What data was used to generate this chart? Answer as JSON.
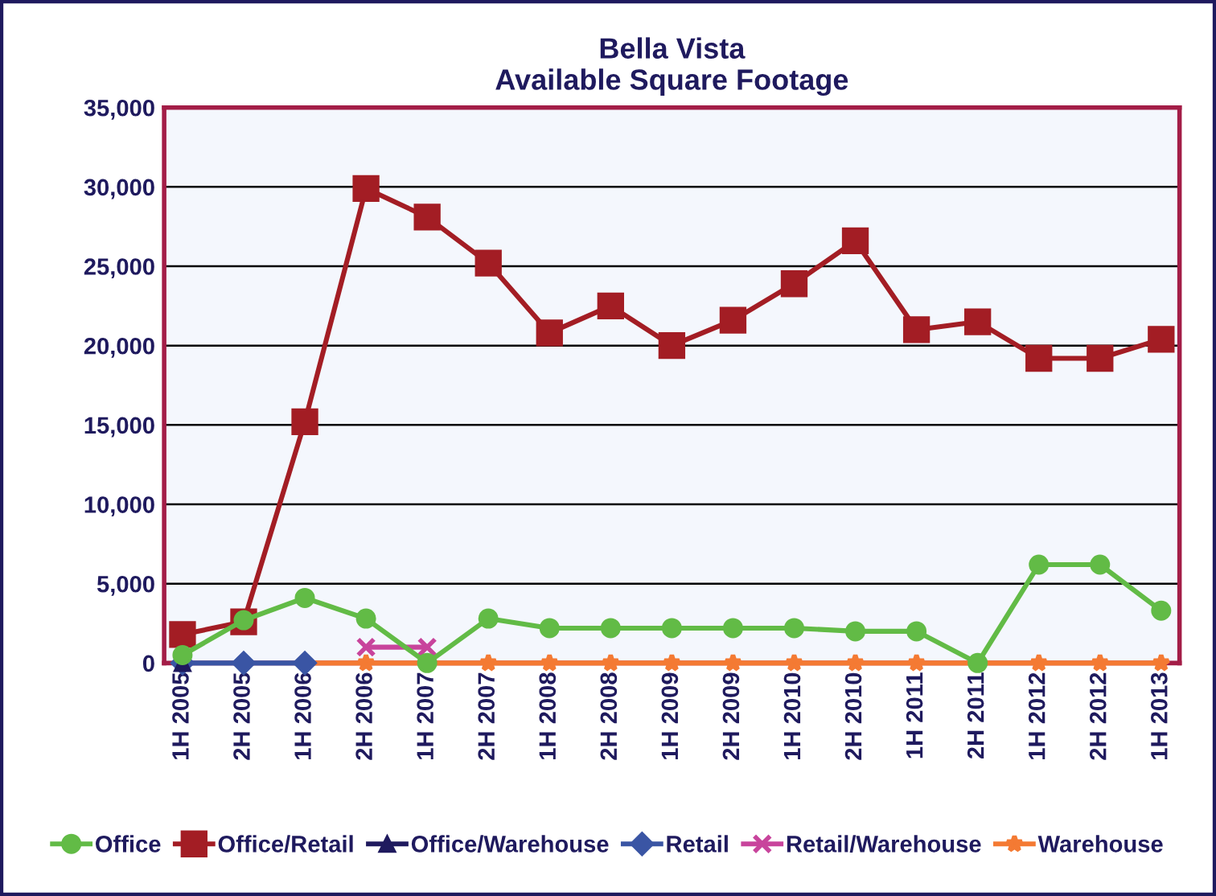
{
  "chart_data": {
    "type": "line",
    "title": "Bella Vista\nAvailable Square Footage",
    "categories": [
      "1H 2005",
      "2H 2005",
      "1H 2006",
      "2H 2006",
      "1H 2007",
      "2H 2007",
      "1H 2008",
      "2H 2008",
      "1H 2009",
      "2H 2009",
      "1H 2010",
      "2H 2010",
      "1H 2011",
      "2H 2011",
      "1H 2012",
      "2H 2012",
      "1H 2013"
    ],
    "series": [
      {
        "name": "Office",
        "color": "#62bb46",
        "marker": "circle",
        "values": [
          500,
          2700,
          4100,
          2800,
          0,
          2800,
          2200,
          2200,
          2200,
          2200,
          2200,
          2000,
          2000,
          0,
          6200,
          6200,
          3300
        ]
      },
      {
        "name": "Office/Retail",
        "color": "#a31d24",
        "marker": "square",
        "values": [
          1800,
          2600,
          15200,
          29900,
          28100,
          25200,
          20800,
          22500,
          20000,
          21600,
          23900,
          26600,
          21000,
          21500,
          19200,
          19200,
          20400
        ]
      },
      {
        "name": "Office/Warehouse",
        "color": "#1f1a5e",
        "marker": "triangle",
        "values": [
          0,
          null,
          null,
          null,
          null,
          null,
          null,
          null,
          null,
          null,
          null,
          null,
          null,
          null,
          null,
          null,
          null
        ]
      },
      {
        "name": "Retail",
        "color": "#3a55a4",
        "marker": "diamond",
        "values": [
          0,
          0,
          0,
          null,
          null,
          null,
          null,
          null,
          null,
          null,
          null,
          null,
          null,
          null,
          null,
          null,
          null
        ]
      },
      {
        "name": "Retail/Warehouse",
        "color": "#c8449c",
        "marker": "cross",
        "values": [
          null,
          null,
          null,
          1000,
          1000,
          null,
          null,
          null,
          null,
          null,
          null,
          null,
          null,
          null,
          null,
          null,
          null
        ]
      },
      {
        "name": "Warehouse",
        "color": "#f47a33",
        "marker": "star",
        "values": [
          null,
          null,
          0,
          0,
          0,
          0,
          0,
          0,
          0,
          0,
          0,
          0,
          0,
          0,
          0,
          0,
          0
        ]
      }
    ],
    "ylim": [
      0,
      35000
    ],
    "yticks": [
      {
        "value": 0,
        "label": "0"
      },
      {
        "value": 5000,
        "label": "5,000"
      },
      {
        "value": 10000,
        "label": "10,000"
      },
      {
        "value": 15000,
        "label": "15,000"
      },
      {
        "value": 20000,
        "label": "20,000"
      },
      {
        "value": 25000,
        "label": "25,000"
      },
      {
        "value": 30000,
        "label": "30,000"
      },
      {
        "value": 35000,
        "label": "35,000"
      }
    ],
    "grid": "y",
    "legend": "bottom",
    "line_style": "solid"
  }
}
